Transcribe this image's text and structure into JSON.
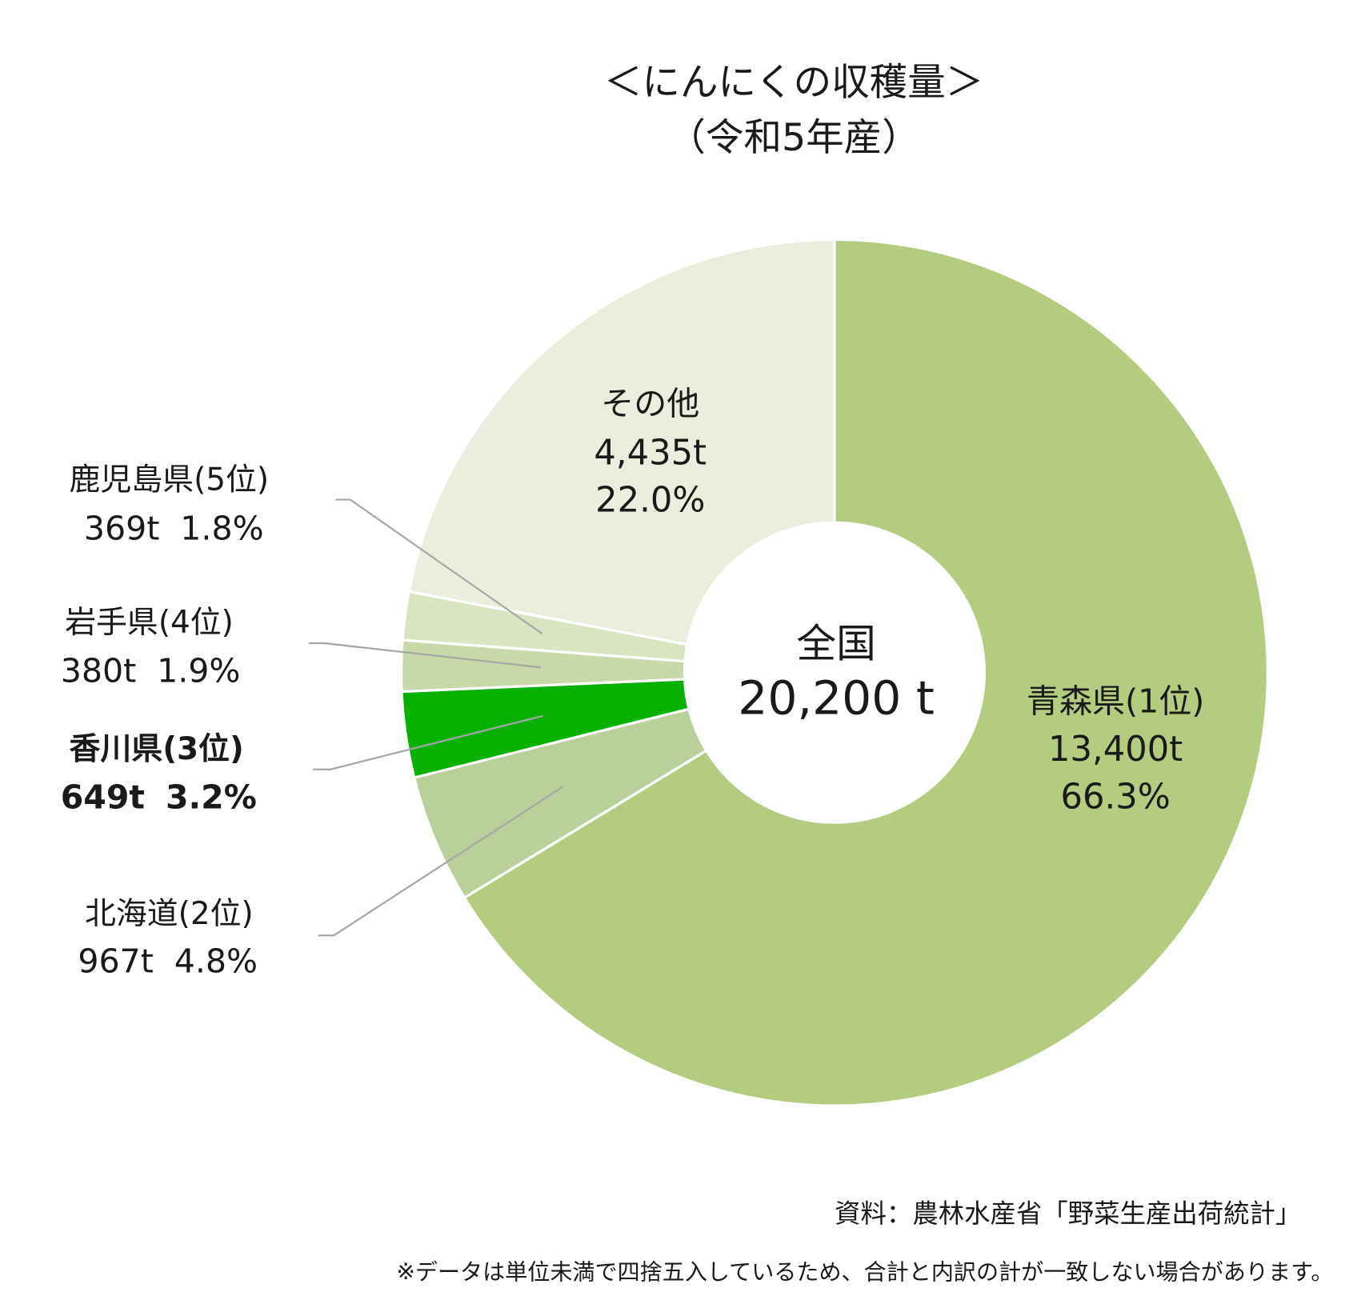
{
  "chart_data": {
    "type": "pie",
    "variant": "donut",
    "title": "＜にんにくの収穫量＞",
    "subtitle": "（令和5年産）",
    "center_label": "全国",
    "center_value": "20,200 t",
    "start": "top, clockwise",
    "slices": [
      {
        "name": "青森県(1位)",
        "value_label": "13,400t",
        "pct_label": "66.3%",
        "value": 13400,
        "percent": 66.3,
        "color": "#b3cc80"
      },
      {
        "name": "北海道(2位)",
        "value_label": "967t",
        "pct_label": "4.8%",
        "value": 967,
        "percent": 4.8,
        "color": "#bad09a"
      },
      {
        "name": "香川県(3位)",
        "value_label": "649t",
        "pct_label": "3.2%",
        "value": 649,
        "percent": 3.2,
        "color": "#08b000",
        "highlight": true
      },
      {
        "name": "岩手県(4位)",
        "value_label": "380t",
        "pct_label": "1.9%",
        "value": 380,
        "percent": 1.9,
        "color": "#c9d8a8"
      },
      {
        "name": "鹿児島県(5位)",
        "value_label": "369t",
        "pct_label": "1.8%",
        "value": 369,
        "percent": 1.8,
        "color": "#d9e4c0"
      },
      {
        "name": "その他",
        "value_label": "4,435t",
        "pct_label": "22.0%",
        "value": 4435,
        "percent": 22.0,
        "color": "#eaefdd"
      }
    ],
    "source": "資料：農林水産省「野菜生産出荷統計」",
    "note": "※データは単位未満で四捨五入しているため、合計と内訳の計が一致しない場合があります。"
  }
}
